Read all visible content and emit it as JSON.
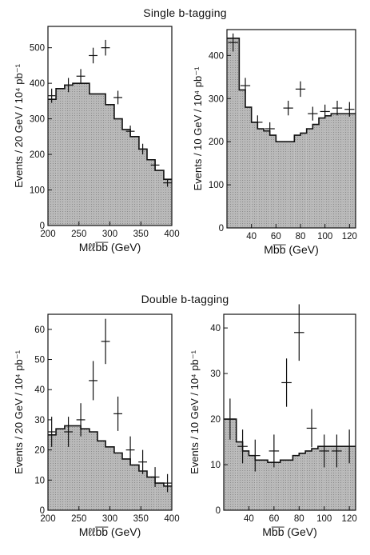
{
  "titles": {
    "single": "Single b-tagging",
    "double": "Double b-tagging"
  },
  "style": {
    "shade": "#b3b3b3",
    "line": "#111111"
  },
  "chart_data": [
    {
      "type": "bar",
      "id": "single-mllbb",
      "xlabel": "Mℓℓb̅b̅  (GeV)",
      "ylabel": "Events / 20 GeV / 10⁴ pb⁻¹",
      "xlim": [
        200,
        400
      ],
      "ylim": [
        0,
        560
      ],
      "xticks": [
        200,
        250,
        300,
        350,
        400
      ],
      "yticks": [
        0,
        100,
        200,
        300,
        400,
        500
      ],
      "bin_edges": [
        200,
        213,
        227,
        240,
        267,
        293,
        307,
        320,
        333,
        347,
        360,
        373,
        387,
        400
      ],
      "background": [
        355,
        385,
        395,
        400,
        370,
        340,
        300,
        270,
        250,
        215,
        185,
        155,
        130
      ],
      "data_points": [
        {
          "x": 206,
          "y": 365,
          "xerr": 6,
          "yerr": 20
        },
        {
          "x": 233,
          "y": 395,
          "xerr": 7,
          "yerr": 20
        },
        {
          "x": 253,
          "y": 420,
          "xerr": 7,
          "yerr": 20
        },
        {
          "x": 273,
          "y": 478,
          "xerr": 7,
          "yerr": 22
        },
        {
          "x": 293,
          "y": 500,
          "xerr": 7,
          "yerr": 22
        },
        {
          "x": 313,
          "y": 360,
          "xerr": 7,
          "yerr": 19
        },
        {
          "x": 333,
          "y": 265,
          "xerr": 7,
          "yerr": 16
        },
        {
          "x": 353,
          "y": 215,
          "xerr": 7,
          "yerr": 15
        },
        {
          "x": 373,
          "y": 170,
          "xerr": 7,
          "yerr": 13
        },
        {
          "x": 393,
          "y": 120,
          "xerr": 7,
          "yerr": 11
        }
      ]
    },
    {
      "type": "bar",
      "id": "single-mbb",
      "xlabel": "Mb̅b̅  (GeV)",
      "ylabel": "Events / 10 GeV / 10⁴ pb⁻¹",
      "xlim": [
        20,
        125
      ],
      "ylim": [
        0,
        460
      ],
      "xticks": [
        40,
        60,
        80,
        100,
        120
      ],
      "yticks": [
        0,
        100,
        200,
        300,
        400
      ],
      "bin_edges": [
        20,
        30,
        35,
        40,
        45,
        50,
        55,
        60,
        65,
        70,
        75,
        80,
        85,
        90,
        95,
        100,
        105,
        110,
        115,
        120,
        125
      ],
      "background": [
        440,
        320,
        280,
        245,
        230,
        225,
        215,
        200,
        200,
        200,
        215,
        220,
        230,
        240,
        255,
        260,
        265,
        265,
        265,
        265
      ],
      "data_points": [
        {
          "x": 25,
          "y": 430,
          "xerr": 4,
          "yerr": 21
        },
        {
          "x": 35,
          "y": 330,
          "xerr": 4,
          "yerr": 18
        },
        {
          "x": 45,
          "y": 245,
          "xerr": 4,
          "yerr": 16
        },
        {
          "x": 55,
          "y": 230,
          "xerr": 4,
          "yerr": 15
        },
        {
          "x": 70,
          "y": 278,
          "xerr": 4,
          "yerr": 17
        },
        {
          "x": 80,
          "y": 322,
          "xerr": 4,
          "yerr": 18
        },
        {
          "x": 90,
          "y": 265,
          "xerr": 4,
          "yerr": 16
        },
        {
          "x": 100,
          "y": 270,
          "xerr": 4,
          "yerr": 16
        },
        {
          "x": 110,
          "y": 278,
          "xerr": 4,
          "yerr": 17
        },
        {
          "x": 120,
          "y": 275,
          "xerr": 4,
          "yerr": 17
        }
      ]
    },
    {
      "type": "bar",
      "id": "double-mllbb",
      "xlabel": "Mℓℓb̅b̅  (GeV)",
      "ylabel": "Events / 20 GeV / 10⁴ pb⁻¹",
      "xlim": [
        200,
        400
      ],
      "ylim": [
        0,
        65
      ],
      "xticks": [
        200,
        250,
        300,
        350,
        400
      ],
      "yticks": [
        0,
        10,
        20,
        30,
        40,
        50,
        60
      ],
      "bin_edges": [
        200,
        213,
        227,
        240,
        253,
        267,
        280,
        293,
        307,
        320,
        333,
        347,
        360,
        373,
        387,
        400
      ],
      "background": [
        25,
        27,
        28,
        28,
        27,
        26,
        23,
        21,
        19,
        17,
        15,
        13,
        11,
        9,
        8
      ],
      "data_points": [
        {
          "x": 206,
          "y": 26,
          "xerr": 6,
          "yerr": 5
        },
        {
          "x": 233,
          "y": 26,
          "xerr": 7,
          "yerr": 5
        },
        {
          "x": 253,
          "y": 30,
          "xerr": 7,
          "yerr": 5.5
        },
        {
          "x": 273,
          "y": 43,
          "xerr": 7,
          "yerr": 6.5
        },
        {
          "x": 293,
          "y": 56,
          "xerr": 7,
          "yerr": 7.5
        },
        {
          "x": 313,
          "y": 32,
          "xerr": 7,
          "yerr": 5.7
        },
        {
          "x": 333,
          "y": 20,
          "xerr": 7,
          "yerr": 4.5
        },
        {
          "x": 353,
          "y": 16,
          "xerr": 7,
          "yerr": 4
        },
        {
          "x": 373,
          "y": 11,
          "xerr": 7,
          "yerr": 3.3
        },
        {
          "x": 393,
          "y": 9,
          "xerr": 7,
          "yerr": 3
        }
      ]
    },
    {
      "type": "bar",
      "id": "double-mbb",
      "xlabel": "Mb̅b̅  (GeV)",
      "ylabel": "Events / 10 GeV / 10⁴ pb⁻¹",
      "xlim": [
        20,
        125
      ],
      "ylim": [
        0,
        43
      ],
      "xticks": [
        40,
        60,
        80,
        100,
        120
      ],
      "yticks": [
        0,
        10,
        20,
        30,
        40
      ],
      "bin_edges": [
        20,
        30,
        35,
        40,
        45,
        50,
        55,
        60,
        65,
        70,
        75,
        80,
        85,
        90,
        95,
        100,
        105,
        110,
        115,
        120,
        125
      ],
      "background": [
        20,
        15,
        13,
        12,
        11,
        11,
        10.5,
        10.5,
        11,
        11,
        12,
        12.5,
        13,
        13.5,
        14,
        14,
        14,
        14,
        14,
        14
      ],
      "data_points": [
        {
          "x": 25,
          "y": 20,
          "xerr": 4,
          "yerr": 4.5
        },
        {
          "x": 35,
          "y": 14,
          "xerr": 4,
          "yerr": 3.7
        },
        {
          "x": 45,
          "y": 12,
          "xerr": 4,
          "yerr": 3.5
        },
        {
          "x": 60,
          "y": 13,
          "xerr": 4,
          "yerr": 3.6
        },
        {
          "x": 70,
          "y": 28,
          "xerr": 4,
          "yerr": 5.3
        },
        {
          "x": 80,
          "y": 39,
          "xerr": 4,
          "yerr": 6.2
        },
        {
          "x": 90,
          "y": 18,
          "xerr": 4,
          "yerr": 4.2
        },
        {
          "x": 100,
          "y": 13,
          "xerr": 4,
          "yerr": 3.6
        },
        {
          "x": 110,
          "y": 13,
          "xerr": 4,
          "yerr": 3.6
        },
        {
          "x": 120,
          "y": 14,
          "xerr": 4,
          "yerr": 3.7
        }
      ]
    }
  ]
}
